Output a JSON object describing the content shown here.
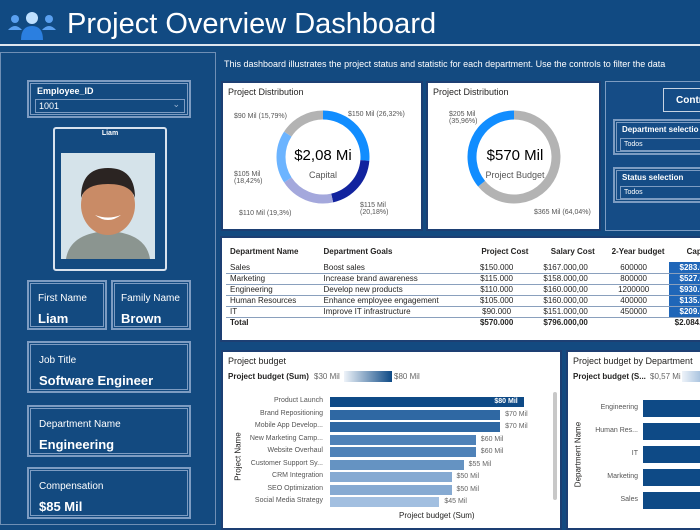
{
  "header": {
    "title": "Project Overview Dashboard",
    "icon": "people-icon"
  },
  "description": "This dashboard illustrates the project status and statistic for each department. Use the controls to filter the data",
  "sidebar": {
    "employee_slicer": {
      "label": "Employee_ID",
      "value": "1001"
    },
    "photo_card": {
      "name": "Liam"
    },
    "first_name": {
      "label": "First Name",
      "value": "Liam"
    },
    "family_name": {
      "label": "Family Name",
      "value": "Brown"
    },
    "job_title": {
      "label": "Job Title",
      "value": "Software Engineer"
    },
    "department": {
      "label": "Department Name",
      "value": "Engineering"
    },
    "compensation": {
      "label": "Compensation",
      "value": "$85 Mil"
    }
  },
  "donut1": {
    "title": "Project Distribution",
    "center_value": "$2,08 Mi",
    "center_label": "Capital",
    "slices": [
      {
        "label": "$150 Mil (26,32%)",
        "value": 150,
        "color": "#118dff"
      },
      {
        "label": "$115 Mil (20,18%)",
        "value": 115,
        "color": "#12239e"
      },
      {
        "label": "$110 Mil (19,3%)",
        "value": 110,
        "color": "#a4a8dc"
      },
      {
        "label": "$105 Mil (18,42%)",
        "value": 105,
        "color": "#6cb4ff"
      },
      {
        "label": "$90 Mil (15,79%)",
        "value": 90,
        "color": "#b3b3b3"
      }
    ]
  },
  "donut2": {
    "title": "Project Distribution",
    "center_value": "$570 Mil",
    "center_label": "Project Budget",
    "slices": [
      {
        "label": "$365 Mil (64,04%)",
        "value": 365,
        "color": "#b3b3b3"
      },
      {
        "label": "$205 Mil (35,96%)",
        "value": 205,
        "color": "#118dff"
      }
    ]
  },
  "controls": {
    "button": "Contr",
    "department_label": "Department selectio",
    "department_value": "Todos",
    "status_label": "Status selection",
    "status_value": "Todos"
  },
  "table": {
    "headers": [
      "Department Name",
      "Department Goals",
      "Project Cost",
      "Salary Cost",
      "2-Year budget",
      "Capi"
    ],
    "rows": [
      [
        "Sales",
        "Boost sales",
        "$150.000",
        "$167.000,00",
        "600000",
        "$283.0"
      ],
      [
        "Marketing",
        "Increase brand awareness",
        "$115.000",
        "$158.000,00",
        "800000",
        "$527.0"
      ],
      [
        "Engineering",
        "Develop new products",
        "$110.000",
        "$160.000,00",
        "1200000",
        "$930.0"
      ],
      [
        "Human Resources",
        "Enhance employee engagement",
        "$105.000",
        "$160.000,00",
        "400000",
        "$135.0"
      ],
      [
        "IT",
        "Improve IT infrastructure",
        "$90.000",
        "$151.000,00",
        "450000",
        "$209.0"
      ]
    ],
    "total": [
      "Total",
      "",
      "$570.000",
      "$796.000,00",
      "",
      "$2.084.("
    ]
  },
  "chart_data": [
    {
      "type": "bar",
      "title": "Project budget",
      "legend_title": "Project budget (Sum)",
      "legend_min": "$30 Mil",
      "legend_max": "$80 Mil",
      "xlabel": "Project budget (Sum)",
      "ylabel": "Project Name",
      "categories": [
        "Product Launch",
        "Brand Repositioning",
        "Mobile App Develop...",
        "New Marketing Camp...",
        "Website Overhaul",
        "Customer Support Sy...",
        "CRM Integration",
        "SEO Optimization",
        "Social Media Strategy"
      ],
      "values": [
        80,
        70,
        70,
        60,
        60,
        55,
        50,
        50,
        45
      ],
      "labels": [
        "$80 Mil",
        "$70 Mil",
        "$70 Mil",
        "$60 Mil",
        "$60 Mil",
        "$55 Mil",
        "$50 Mil",
        "$50 Mil",
        "$45 Mil"
      ]
    },
    {
      "type": "bar",
      "title": "Project budget by Department",
      "legend_title": "Project budget (S...",
      "legend_min": "$0,57 Mi",
      "ylabel": "Department Name",
      "categories": [
        "Engineering",
        "Human Res...",
        "IT",
        "Marketing",
        "Sales"
      ]
    }
  ]
}
